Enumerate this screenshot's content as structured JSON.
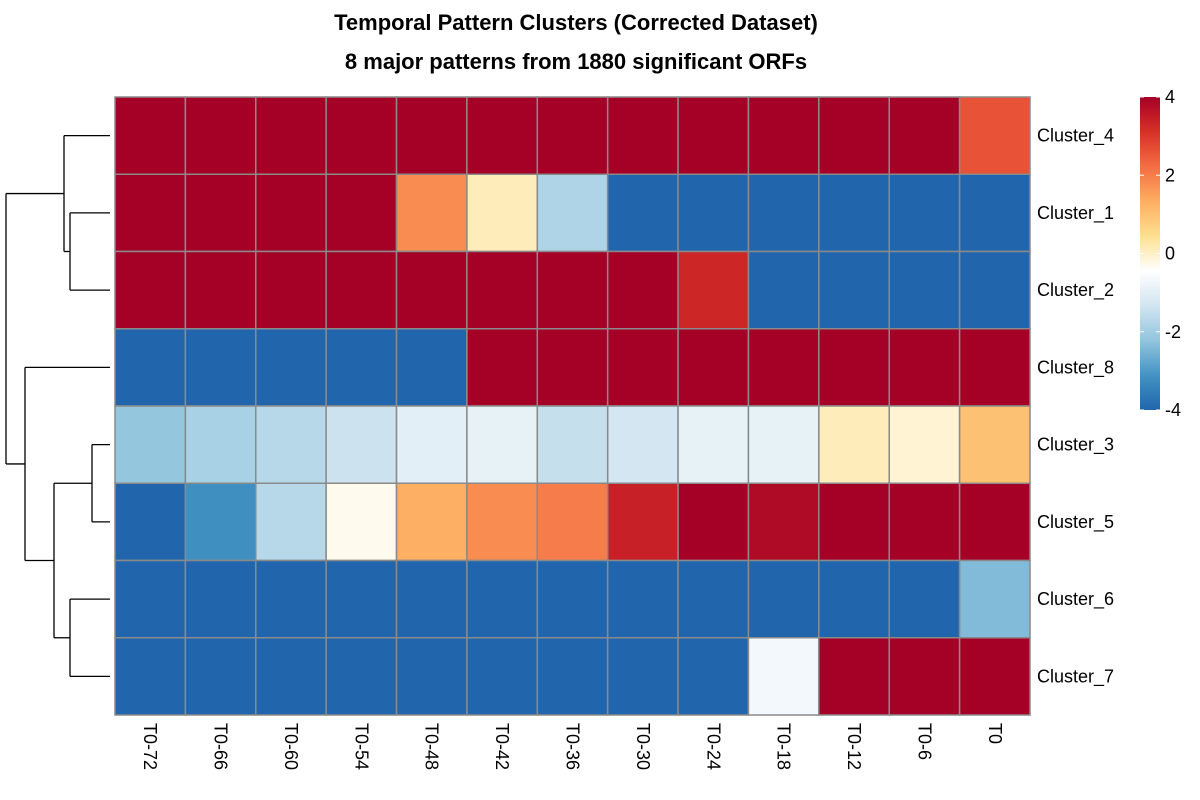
{
  "chart_data": {
    "type": "heatmap",
    "title": "Temporal Pattern Clusters (Corrected Dataset)",
    "subtitle": "8 major patterns from 1880 significant ORFs",
    "columns": [
      "T0-72",
      "T0-66",
      "T0-60",
      "T0-54",
      "T0-48",
      "T0-42",
      "T0-36",
      "T0-30",
      "T0-24",
      "T0-18",
      "T0-12",
      "T0-6",
      "T0"
    ],
    "rows": [
      "Cluster_4",
      "Cluster_1",
      "Cluster_2",
      "Cluster_8",
      "Cluster_3",
      "Cluster_5",
      "Cluster_6",
      "Cluster_7"
    ],
    "values": [
      [
        4,
        4,
        4,
        4,
        4,
        4,
        4,
        4,
        4,
        4,
        4,
        4,
        2.6
      ],
      [
        4,
        4,
        4,
        4,
        1.8,
        0.1,
        -1.8,
        -4,
        -4,
        -4,
        -4,
        -4,
        -4
      ],
      [
        4,
        4,
        4,
        4,
        4,
        4,
        4,
        4,
        3.3,
        -4,
        -4,
        -4,
        -4
      ],
      [
        -4,
        -4,
        -4,
        -4,
        -4,
        4,
        4,
        4,
        4,
        4,
        4,
        4,
        4
      ],
      [
        -2.2,
        -1.9,
        -1.7,
        -1.4,
        -1.0,
        -0.9,
        -1.5,
        -1.3,
        -0.9,
        -0.9,
        0.1,
        -0.1,
        1.0
      ],
      [
        -4,
        -3.2,
        -1.7,
        -0.3,
        1.3,
        1.8,
        2.0,
        3.4,
        4,
        3.8,
        4,
        4,
        4
      ],
      [
        -4,
        -4,
        -4,
        -4,
        -4,
        -4,
        -4,
        -4,
        -4,
        -4,
        -4,
        -4,
        -2.4
      ],
      [
        -4,
        -4,
        -4,
        -4,
        -4,
        -4,
        -4,
        -4,
        -4,
        -0.7,
        4,
        4,
        4
      ]
    ],
    "color_scale": {
      "min": -4,
      "max": 4,
      "stops": [
        "#2166AC",
        "#4393C3",
        "#92C5DE",
        "#D1E5F0",
        "#FFFFFF",
        "#FEE090",
        "#FDAE61",
        "#F46D43",
        "#D73027",
        "#A50026"
      ],
      "ticks": [
        4,
        2,
        0,
        -2,
        -4
      ]
    },
    "dendrogram": "rows",
    "legend_position": "right",
    "grid": true,
    "cell_border_color": "#8A8A8A"
  }
}
